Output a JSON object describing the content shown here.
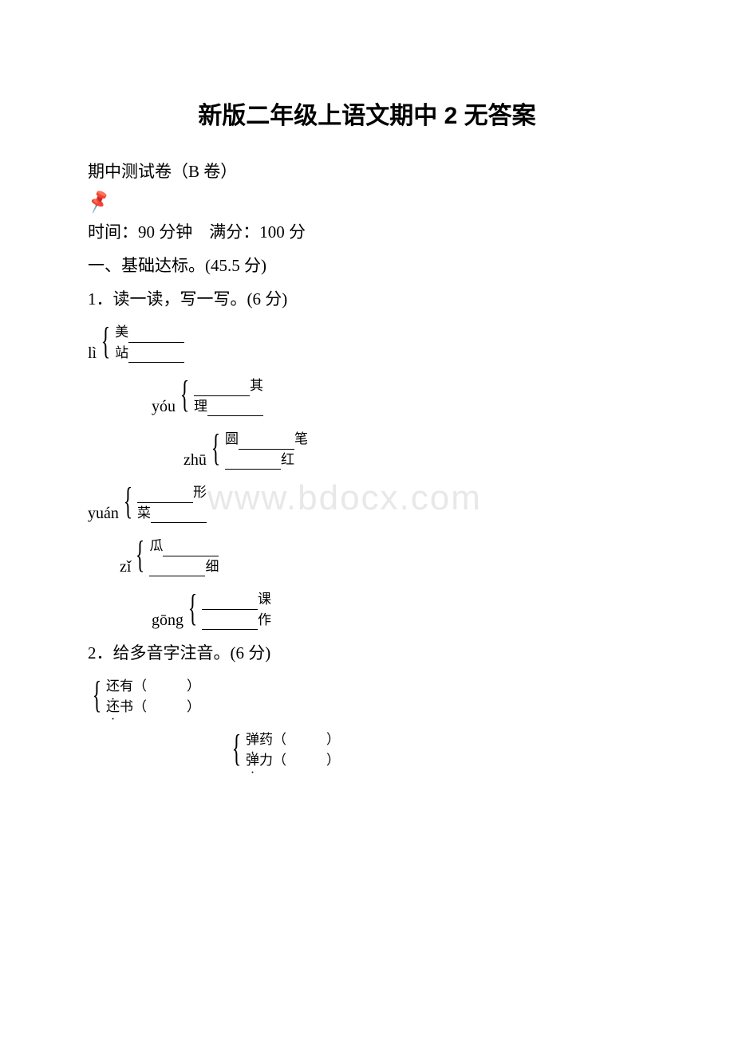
{
  "title": "新版二年级上语文期中 2 无答案",
  "subtitle": "期中测试卷（B 卷）",
  "time_info": "时间：90 分钟　满分：100 分",
  "section1": "一、基础达标。(45.5 分)",
  "q1": "1．读一读，写一写。(6 分)",
  "q2": "2．给多音字注音。(6 分)",
  "watermark": "www.bdocx.com",
  "groups": [
    {
      "pinyin": "lì",
      "rows": [
        {
          "prefix": "美",
          "suffix": ""
        },
        {
          "prefix": "站",
          "suffix": ""
        }
      ],
      "indent": ""
    },
    {
      "pinyin": "yóu",
      "rows": [
        {
          "prefix": "",
          "suffix": "其"
        },
        {
          "prefix": "理",
          "suffix": ""
        }
      ],
      "indent": "indent2"
    },
    {
      "pinyin": "zhū",
      "rows": [
        {
          "prefix": "圆",
          "suffix": "笔"
        },
        {
          "prefix": "",
          "suffix": "红"
        }
      ],
      "indent": "indent3"
    },
    {
      "pinyin": "yuán",
      "rows": [
        {
          "prefix": "",
          "suffix": "形"
        },
        {
          "prefix": "菜",
          "suffix": ""
        }
      ],
      "indent": ""
    },
    {
      "pinyin": "zǐ",
      "rows": [
        {
          "prefix": "瓜",
          "suffix": ""
        },
        {
          "prefix": "",
          "suffix": "细"
        }
      ],
      "indent": "indent1"
    },
    {
      "pinyin": "gōng",
      "rows": [
        {
          "prefix": "",
          "suffix": "课"
        },
        {
          "prefix": "",
          "suffix": "作"
        }
      ],
      "indent": "indent2"
    }
  ],
  "q2_groups": [
    {
      "rows": [
        {
          "char": "还",
          "rest": "有（"
        },
        {
          "char": "还",
          "rest": "书（"
        }
      ],
      "indent": ""
    },
    {
      "rows": [
        {
          "char": "弹",
          "rest": "药（"
        },
        {
          "char": "弹",
          "rest": "力（"
        }
      ],
      "indent": "indent4"
    }
  ],
  "colors": {
    "text": "#000000",
    "background": "#ffffff",
    "watermark": "#e8e8e8",
    "icon": "#888888"
  },
  "fonts": {
    "title_family": "SimHei",
    "body_family": "SimSun",
    "title_size": 30,
    "body_size": 21,
    "bracket_content_size": 17
  }
}
